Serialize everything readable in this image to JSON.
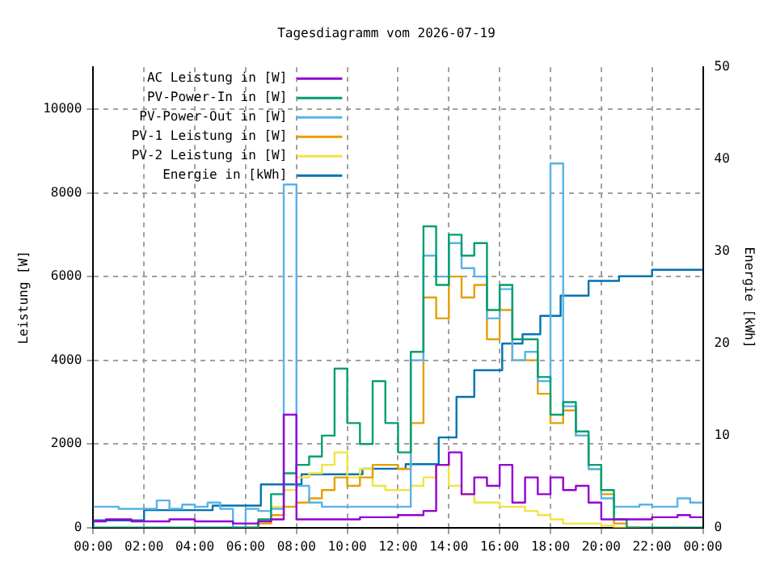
{
  "chart_data": {
    "type": "step",
    "title": "Tagesdiagramm vom 2026-07-19",
    "ylabel": "Leistung [W]",
    "y2label": "Energie [kWh]",
    "x": [
      0,
      0.5,
      1,
      1.5,
      2,
      2.5,
      3,
      3.5,
      4,
      4.5,
      5,
      5.5,
      6,
      6.5,
      7,
      7.5,
      8,
      8.5,
      9,
      9.5,
      10,
      10.5,
      11,
      11.5,
      12,
      12.5,
      13,
      13.5,
      14,
      14.5,
      15,
      15.5,
      16,
      16.5,
      17,
      17.5,
      18,
      18.5,
      19,
      19.5,
      20,
      20.5,
      21,
      21.5,
      22,
      22.5,
      23,
      23.5,
      24
    ],
    "xlim": [
      0,
      24
    ],
    "xticks": [
      {
        "value": 0,
        "label": "00:00"
      },
      {
        "value": 2,
        "label": "02:00"
      },
      {
        "value": 4,
        "label": "04:00"
      },
      {
        "value": 6,
        "label": "06:00"
      },
      {
        "value": 8,
        "label": "08:00"
      },
      {
        "value": 10,
        "label": "10:00"
      },
      {
        "value": 12,
        "label": "12:00"
      },
      {
        "value": 14,
        "label": "14:00"
      },
      {
        "value": 16,
        "label": "16:00"
      },
      {
        "value": 18,
        "label": "18:00"
      },
      {
        "value": 20,
        "label": "20:00"
      },
      {
        "value": 22,
        "label": "22:00"
      },
      {
        "value": 24,
        "label": "00:00"
      }
    ],
    "ylim": [
      0,
      11000
    ],
    "yticks": [
      0,
      2000,
      4000,
      6000,
      8000,
      10000
    ],
    "y2lim": [
      0,
      50
    ],
    "y2ticks": [
      0,
      10,
      20,
      30,
      40,
      50
    ],
    "grid": true,
    "legend": "top left",
    "line_style": "solid",
    "marker": "none",
    "series": [
      {
        "name": "AC Leistung in [W]",
        "color": "#9400d3",
        "values": [
          150,
          150,
          200,
          200,
          150,
          150,
          150,
          200,
          200,
          150,
          150,
          150,
          100,
          100,
          150,
          200,
          2700,
          200,
          200,
          200,
          200,
          200,
          250,
          250,
          250,
          300,
          300,
          400,
          1500,
          1800,
          800,
          1200,
          1000,
          1500,
          600,
          1200,
          800,
          1200,
          900,
          1000,
          600,
          200,
          200,
          200,
          200,
          250,
          250,
          300,
          250
        ]
      },
      {
        "name": "PV-Power-In in [W]",
        "color": "#009e73",
        "values": [
          0,
          0,
          0,
          0,
          0,
          0,
          0,
          0,
          0,
          0,
          0,
          0,
          0,
          0,
          200,
          800,
          1300,
          1500,
          1700,
          2200,
          3800,
          2500,
          2000,
          3500,
          2500,
          1800,
          4200,
          7200,
          5800,
          7000,
          6500,
          6800,
          5200,
          5800,
          4500,
          4500,
          3600,
          2700,
          3000,
          2300,
          1500,
          900,
          200,
          0,
          0,
          0,
          0,
          0,
          0
        ]
      },
      {
        "name": "PV-Power-Out in [W]",
        "color": "#56b4e9",
        "values": [
          500,
          500,
          500,
          450,
          450,
          450,
          650,
          450,
          550,
          500,
          600,
          450,
          0,
          450,
          400,
          450,
          8200,
          1000,
          600,
          500,
          500,
          500,
          500,
          500,
          500,
          500,
          4000,
          6500,
          6000,
          6800,
          6200,
          6000,
          5000,
          5700,
          4000,
          4200,
          3500,
          8700,
          2900,
          2200,
          1400,
          700,
          500,
          500,
          550,
          500,
          500,
          700,
          600
        ]
      },
      {
        "name": "PV-1 Leistung in [W]",
        "color": "#e69f00",
        "values": [
          null,
          null,
          null,
          null,
          null,
          null,
          null,
          null,
          null,
          null,
          null,
          null,
          0,
          0,
          100,
          300,
          500,
          600,
          700,
          900,
          1200,
          1000,
          1200,
          1500,
          1500,
          1400,
          2500,
          5500,
          5000,
          6000,
          5500,
          5800,
          4500,
          5200,
          4000,
          4000,
          3200,
          2500,
          2800,
          2200,
          1400,
          800,
          100,
          0,
          null,
          null,
          null,
          null,
          null
        ]
      },
      {
        "name": "PV-2 Leistung in [W]",
        "color": "#f0e442",
        "values": [
          null,
          null,
          null,
          null,
          null,
          null,
          null,
          null,
          null,
          null,
          null,
          null,
          null,
          0,
          200,
          500,
          900,
          1200,
          1300,
          1500,
          1800,
          1200,
          1400,
          1000,
          900,
          900,
          1000,
          1200,
          1500,
          1000,
          800,
          600,
          600,
          500,
          500,
          400,
          300,
          200,
          100,
          100,
          100,
          50,
          0,
          0,
          null,
          null,
          null,
          null,
          null
        ]
      },
      {
        "name": "Energie in [kWh]",
        "color": "#0072b2",
        "axis": "y2",
        "x": [
          0,
          2,
          4.7,
          6.6,
          8.2,
          10.6,
          12.3,
          13.6,
          14.3,
          15,
          16.1,
          16.9,
          17.6,
          18.4,
          19.5,
          20.7,
          22,
          24
        ],
        "values": [
          0,
          0.8,
          1.9,
          2.4,
          4.7,
          5.8,
          6.4,
          6.9,
          9.8,
          14.2,
          17.1,
          20,
          21,
          23,
          25.2,
          26.8,
          27.3,
          28
        ]
      }
    ]
  }
}
